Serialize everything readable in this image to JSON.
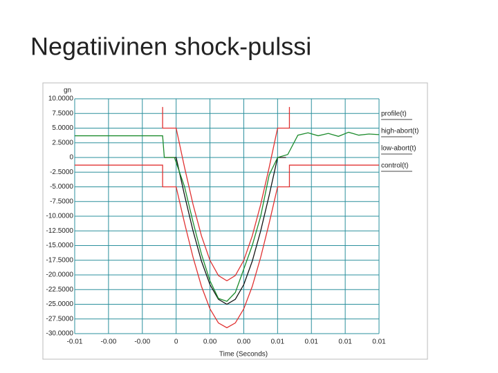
{
  "title": "Negatiivinen shock-pulssi",
  "chart_data": {
    "type": "line",
    "y_label": "gn",
    "x_label": "Time (Seconds)",
    "xlim": [
      -0.006,
      0.012
    ],
    "xticks": [
      {
        "value": -0.006,
        "label": "-0.01"
      },
      {
        "value": -0.004,
        "label": "-0.00"
      },
      {
        "value": -0.002,
        "label": "-0.00"
      },
      0,
      {
        "value": 0.002,
        "label": "0.00"
      },
      {
        "value": 0.004,
        "label": "0.00"
      },
      {
        "value": 0.006,
        "label": "0.01"
      },
      {
        "value": 0.008,
        "label": "0.01"
      },
      {
        "value": 0.01,
        "label": "0.01"
      },
      {
        "value": 0.012,
        "label": "0.01"
      }
    ],
    "ylim": [
      -30,
      10
    ],
    "yticks": [
      {
        "value": 10,
        "label": "10.0000"
      },
      {
        "value": 7.5,
        "label": "7.5000"
      },
      {
        "value": 5,
        "label": "5.0000"
      },
      {
        "value": 2.5,
        "label": "2.5000"
      },
      0,
      {
        "value": -2.5,
        "label": "-2.5000"
      },
      {
        "value": -5,
        "label": "-5.0000"
      },
      {
        "value": -7.5,
        "label": "-7.5000"
      },
      {
        "value": -10,
        "label": "-10.0000"
      },
      {
        "value": -12.5,
        "label": "-12.5000"
      },
      {
        "value": -15,
        "label": "-15.0000"
      },
      {
        "value": -17.5,
        "label": "-17.5000"
      },
      {
        "value": -20,
        "label": "-20.0000"
      },
      {
        "value": -22.5,
        "label": "-22.5000"
      },
      {
        "value": -25,
        "label": "-25.0000"
      },
      {
        "value": -27.5,
        "label": "-27.5000"
      },
      {
        "value": -30,
        "label": "-30.0000"
      }
    ],
    "grid": true,
    "legend": "right",
    "series": [
      {
        "name": "profile(t)",
        "color": "#111111",
        "x": [
          -0.0007,
          0,
          0.0005,
          0.001,
          0.0015,
          0.002,
          0.0025,
          0.003,
          0.0035,
          0.004,
          0.0045,
          0.005,
          0.0055,
          0.006,
          0.0065
        ],
        "values": [
          0,
          0,
          -6.47,
          -12.5,
          -17.68,
          -21.65,
          -24.15,
          -25,
          -24.15,
          -21.65,
          -17.68,
          -12.5,
          -6.47,
          0,
          0
        ]
      },
      {
        "name": "high-abort(t)",
        "color": "#e03030",
        "x": [
          -0.0008,
          -0.0008,
          0,
          0.0005,
          0.001,
          0.0015,
          0.002,
          0.0025,
          0.003,
          0.0035,
          0.004,
          0.0045,
          0.005,
          0.0055,
          0.006,
          0.0067,
          0.0067
        ],
        "values": [
          8.6,
          5,
          5,
          -1.73,
          -8,
          -13.38,
          -17.52,
          -20.11,
          -21,
          -20.11,
          -17.52,
          -13.38,
          -8,
          -1.73,
          5,
          5,
          8.6
        ]
      },
      {
        "name": "low-abort(t)",
        "color": "#e03030",
        "x": [
          -0.006,
          -0.0008,
          -0.0008,
          0,
          0.0005,
          0.001,
          0.0015,
          0.002,
          0.0025,
          0.003,
          0.0035,
          0.004,
          0.0045,
          0.005,
          0.0055,
          0.006,
          0.0067,
          0.0067,
          0.012
        ],
        "values": [
          -1.3,
          -1.3,
          -5,
          -5,
          -11.21,
          -17,
          -21.97,
          -25.78,
          -28.18,
          -29,
          -28.18,
          -25.78,
          -21.97,
          -17,
          -11.21,
          -5,
          -5,
          -1.3,
          -1.3
        ]
      },
      {
        "name": "control(t)",
        "color": "#1a8a2a",
        "x": [
          -0.006,
          -0.0008,
          -0.0007,
          -0.0001,
          0.0005,
          0.001,
          0.0015,
          0.002,
          0.0025,
          0.003,
          0.0035,
          0.004,
          0.0045,
          0.005,
          0.0055,
          0.006,
          0.0066,
          0.0072,
          0.0078,
          0.0084,
          0.009,
          0.0096,
          0.0102,
          0.0108,
          0.0114,
          0.012
        ],
        "values": [
          3.7,
          3.7,
          0,
          0,
          -5,
          -11,
          -16.5,
          -21,
          -24,
          -24.5,
          -23,
          -19,
          -15,
          -10,
          -3,
          0,
          0.5,
          3.8,
          4.2,
          3.7,
          4.1,
          3.6,
          4.3,
          3.8,
          4,
          3.9
        ]
      }
    ]
  }
}
